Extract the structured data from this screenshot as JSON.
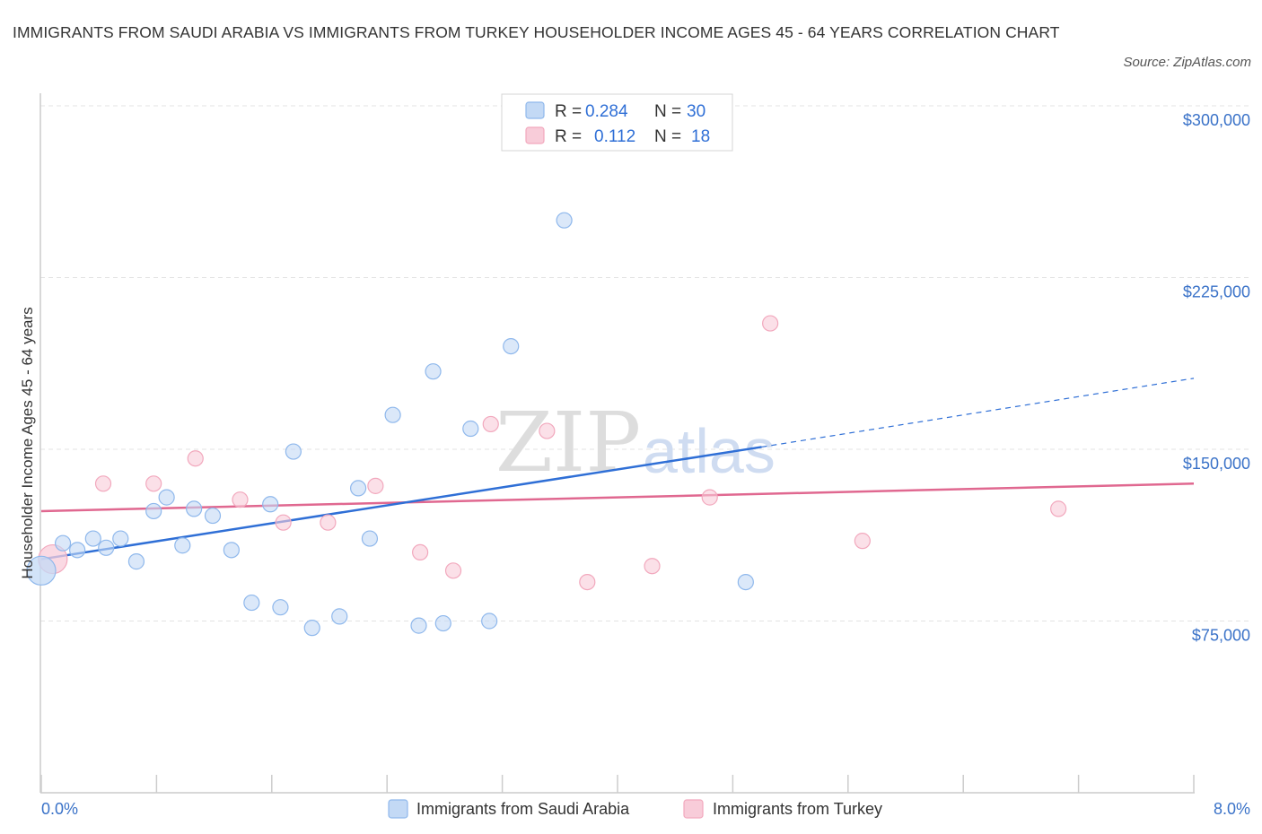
{
  "title": "IMMIGRANTS FROM SAUDI ARABIA VS IMMIGRANTS FROM TURKEY HOUSEHOLDER INCOME AGES 45 - 64 YEARS CORRELATION CHART",
  "source": "Source: ZipAtlas.com",
  "watermark": {
    "zip": "ZIP",
    "atlas": "atlas"
  },
  "legend": {
    "rows": [
      {
        "r_label": "R =",
        "r_value": "0.284",
        "n_label": "N =",
        "n_value": "30"
      },
      {
        "r_label": "R =",
        "r_value": "0.112",
        "n_label": "N =",
        "n_value": "18"
      }
    ]
  },
  "chart_data": {
    "type": "scatter",
    "ylabel": "Householder Income Ages 45 - 64 years",
    "xlabel": "",
    "xlim": [
      0,
      8
    ],
    "ylim": [
      0,
      300000
    ],
    "x_ticks": [
      "0.0%",
      "8.0%"
    ],
    "y_ticks": [
      {
        "value": 75000,
        "label": "$75,000"
      },
      {
        "value": 150000,
        "label": "$150,000"
      },
      {
        "value": 225000,
        "label": "$225,000"
      },
      {
        "value": 300000,
        "label": "$300,000"
      }
    ],
    "grid": true,
    "legend_position": "top-center",
    "series": [
      {
        "name": "Immigrants from Saudi Arabia",
        "color": "#8fb8ec",
        "fill": "#c3d9f5",
        "line_color": "#2f6fd6",
        "trend": {
          "x0": 0.0,
          "y0": 102000,
          "x1": 5.0,
          "y1": 151000,
          "x_ext": 8.0,
          "y_ext": 181000
        },
        "points": [
          [
            0.0,
            97000
          ],
          [
            0.15,
            109000
          ],
          [
            0.25,
            106000
          ],
          [
            0.36,
            111000
          ],
          [
            0.45,
            107000
          ],
          [
            0.55,
            111000
          ],
          [
            0.66,
            101000
          ],
          [
            0.78,
            123000
          ],
          [
            0.87,
            129000
          ],
          [
            0.98,
            108000
          ],
          [
            1.06,
            124000
          ],
          [
            1.19,
            121000
          ],
          [
            1.32,
            106000
          ],
          [
            1.46,
            83000
          ],
          [
            1.59,
            126000
          ],
          [
            1.66,
            81000
          ],
          [
            1.75,
            149000
          ],
          [
            1.88,
            72000
          ],
          [
            2.07,
            77000
          ],
          [
            2.2,
            133000
          ],
          [
            2.28,
            111000
          ],
          [
            2.44,
            165000
          ],
          [
            2.62,
            73000
          ],
          [
            2.72,
            184000
          ],
          [
            2.79,
            74000
          ],
          [
            2.98,
            159000
          ],
          [
            3.11,
            75000
          ],
          [
            3.26,
            195000
          ],
          [
            3.63,
            250000
          ],
          [
            4.89,
            92000
          ]
        ]
      },
      {
        "name": "Immigrants from Turkey",
        "color": "#f2a8bd",
        "fill": "#f8ccd9",
        "line_color": "#e06890",
        "trend": {
          "x0": 0.0,
          "y0": 123000,
          "x1": 8.0,
          "y1": 135000
        },
        "points": [
          [
            0.08,
            102000
          ],
          [
            0.43,
            135000
          ],
          [
            0.78,
            135000
          ],
          [
            1.07,
            146000
          ],
          [
            1.38,
            128000
          ],
          [
            1.68,
            118000
          ],
          [
            1.99,
            118000
          ],
          [
            2.32,
            134000
          ],
          [
            2.63,
            105000
          ],
          [
            2.86,
            97000
          ],
          [
            3.12,
            161000
          ],
          [
            3.51,
            158000
          ],
          [
            3.79,
            92000
          ],
          [
            4.24,
            99000
          ],
          [
            4.64,
            129000
          ],
          [
            5.06,
            205000
          ],
          [
            5.7,
            110000
          ],
          [
            7.06,
            124000
          ]
        ]
      }
    ]
  }
}
